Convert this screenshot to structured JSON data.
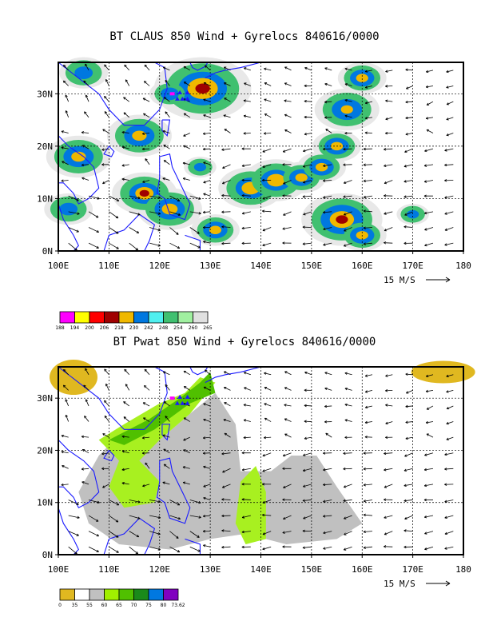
{
  "panels": [
    {
      "title": "BT CLAUS 850 Wind + Gyrelocs 840616/0000",
      "xticks": [
        "100E",
        "110E",
        "120E",
        "130E",
        "140E",
        "150E",
        "160E",
        "170E",
        "180"
      ],
      "yticks": [
        "0N",
        "10N",
        "20N",
        "30N"
      ],
      "vector_ref": "15 M/S",
      "legend_colors": [
        "#ff00ff",
        "#ffff00",
        "#ff0000",
        "#a00000",
        "#f0b800",
        "#0078e0",
        "#50f0f0",
        "#40c070",
        "#a0f0a0",
        "#e0e0e0"
      ],
      "legend_labels": [
        "188",
        "194",
        "200",
        "206",
        "218",
        "230",
        "242",
        "248",
        "254",
        "260",
        "265"
      ]
    },
    {
      "title": "BT Pwat 850 Wind + Gyrelocs 840616/0000",
      "xticks": [
        "100E",
        "110E",
        "120E",
        "130E",
        "140E",
        "150E",
        "160E",
        "170E",
        "180"
      ],
      "yticks": [
        "0N",
        "10N",
        "20N",
        "30N"
      ],
      "vector_ref": "15 M/S",
      "legend_colors": [
        "#e0b820",
        "#ffffff",
        "#c0c0c0",
        "#a0f000",
        "#50c000",
        "#1a8a1a",
        "#0078e0",
        "#8000c0"
      ],
      "legend_labels": [
        "0",
        "35",
        "55",
        "60",
        "65",
        "70",
        "75",
        "80",
        "73.62"
      ]
    }
  ],
  "map_data": {
    "lon_range": [
      100,
      180
    ],
    "lat_range": [
      0,
      36
    ],
    "gyrelocs": [
      {
        "lon": 122.5,
        "lat": 30,
        "marker": "magenta-box"
      },
      {
        "lon": 123.5,
        "lat": 29,
        "marker": "blue-triangle"
      },
      {
        "lon": 124.5,
        "lat": 29,
        "marker": "blue-triangle"
      },
      {
        "lon": 125.5,
        "lat": 29,
        "marker": "blue-triangle"
      },
      {
        "lon": 124.0,
        "lat": 30.2,
        "marker": "blue-triangle"
      },
      {
        "lon": 125.5,
        "lat": 30.2,
        "marker": "blue-triangle"
      }
    ]
  }
}
